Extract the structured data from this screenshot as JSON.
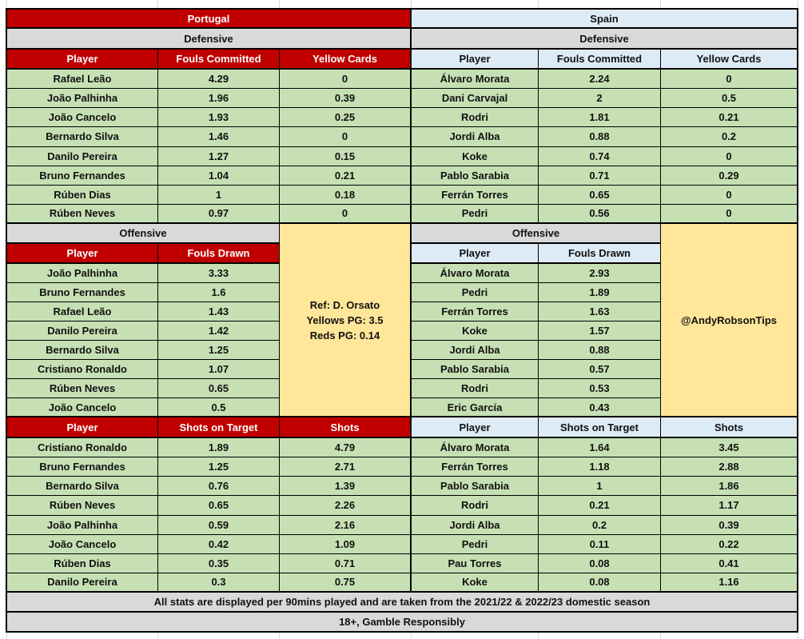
{
  "colors": {
    "portugal_header": "#c00000",
    "spain_header": "#ddebf7",
    "section_header": "#d9d9d9",
    "data_cell": "#c6e0b4",
    "info_box": "#ffe699"
  },
  "portugal": {
    "team": "Portugal",
    "defensive": {
      "label": "Defensive",
      "headers": {
        "player": "Player",
        "fouls_committed": "Fouls Committed",
        "yellow_cards": "Yellow Cards"
      },
      "rows": [
        {
          "player": "Rafael Leão",
          "fouls_committed": 4.29,
          "yellow_cards": 0
        },
        {
          "player": "João Palhinha",
          "fouls_committed": 1.96,
          "yellow_cards": 0.39
        },
        {
          "player": "João Cancelo",
          "fouls_committed": 1.93,
          "yellow_cards": 0.25
        },
        {
          "player": "Bernardo Silva",
          "fouls_committed": 1.46,
          "yellow_cards": 0
        },
        {
          "player": "Danilo Pereira",
          "fouls_committed": 1.27,
          "yellow_cards": 0.15
        },
        {
          "player": "Bruno Fernandes",
          "fouls_committed": 1.04,
          "yellow_cards": 0.21
        },
        {
          "player": "Rúben Dias",
          "fouls_committed": 1,
          "yellow_cards": 0.18
        },
        {
          "player": "Rúben Neves",
          "fouls_committed": 0.97,
          "yellow_cards": 0
        }
      ]
    },
    "offensive": {
      "label": "Offensive",
      "headers": {
        "player": "Player",
        "fouls_drawn": "Fouls Drawn"
      },
      "rows": [
        {
          "player": "João Palhinha",
          "fouls_drawn": 3.33
        },
        {
          "player": "Bruno Fernandes",
          "fouls_drawn": 1.6
        },
        {
          "player": "Rafael Leão",
          "fouls_drawn": 1.43
        },
        {
          "player": "Danilo Pereira",
          "fouls_drawn": 1.42
        },
        {
          "player": "Bernardo Silva",
          "fouls_drawn": 1.25
        },
        {
          "player": "Cristiano Ronaldo",
          "fouls_drawn": 1.07
        },
        {
          "player": "Rúben Neves",
          "fouls_drawn": 0.65
        },
        {
          "player": "João Cancelo",
          "fouls_drawn": 0.5
        }
      ]
    },
    "shots": {
      "headers": {
        "player": "Player",
        "shots_on_target": "Shots on Target",
        "shots": "Shots"
      },
      "rows": [
        {
          "player": "Cristiano Ronaldo",
          "shots_on_target": 1.89,
          "shots": 4.79
        },
        {
          "player": "Bruno Fernandes",
          "shots_on_target": 1.25,
          "shots": 2.71
        },
        {
          "player": "Bernardo Silva",
          "shots_on_target": 0.76,
          "shots": 1.39
        },
        {
          "player": "Rúben Neves",
          "shots_on_target": 0.65,
          "shots": 2.26
        },
        {
          "player": "João Palhinha",
          "shots_on_target": 0.59,
          "shots": 2.16
        },
        {
          "player": "João Cancelo",
          "shots_on_target": 0.42,
          "shots": 1.09
        },
        {
          "player": "Rúben Dias",
          "shots_on_target": 0.35,
          "shots": 0.71
        },
        {
          "player": "Danilo Pereira",
          "shots_on_target": 0.3,
          "shots": 0.75
        }
      ]
    },
    "referee_box": {
      "referee": "Ref: D. Orsato",
      "yellows_pg": "Yellows PG: 3.5",
      "reds_pg": "Reds PG: 0.14"
    }
  },
  "spain": {
    "team": "Spain",
    "defensive": {
      "label": "Defensive",
      "headers": {
        "player": "Player",
        "fouls_committed": "Fouls Committed",
        "yellow_cards": "Yellow Cards"
      },
      "rows": [
        {
          "player": "Álvaro Morata",
          "fouls_committed": 2.24,
          "yellow_cards": 0
        },
        {
          "player": "Dani Carvajal",
          "fouls_committed": 2,
          "yellow_cards": 0.5
        },
        {
          "player": "Rodri",
          "fouls_committed": 1.81,
          "yellow_cards": 0.21
        },
        {
          "player": "Jordi Alba",
          "fouls_committed": 0.88,
          "yellow_cards": 0.2
        },
        {
          "player": "Koke",
          "fouls_committed": 0.74,
          "yellow_cards": 0
        },
        {
          "player": "Pablo Sarabia",
          "fouls_committed": 0.71,
          "yellow_cards": 0.29
        },
        {
          "player": "Ferrán Torres",
          "fouls_committed": 0.65,
          "yellow_cards": 0
        },
        {
          "player": "Pedri",
          "fouls_committed": 0.56,
          "yellow_cards": 0
        }
      ]
    },
    "offensive": {
      "label": "Offensive",
      "headers": {
        "player": "Player",
        "fouls_drawn": "Fouls Drawn"
      },
      "rows": [
        {
          "player": "Álvaro Morata",
          "fouls_drawn": 2.93
        },
        {
          "player": "Pedri",
          "fouls_drawn": 1.89
        },
        {
          "player": "Ferrán Torres",
          "fouls_drawn": 1.63
        },
        {
          "player": "Koke",
          "fouls_drawn": 1.57
        },
        {
          "player": "Jordi Alba",
          "fouls_drawn": 0.88
        },
        {
          "player": "Pablo Sarabia",
          "fouls_drawn": 0.57
        },
        {
          "player": "Rodri",
          "fouls_drawn": 0.53
        },
        {
          "player": "Eric García",
          "fouls_drawn": 0.43
        }
      ]
    },
    "shots": {
      "headers": {
        "player": "Player",
        "shots_on_target": "Shots on Target",
        "shots": "Shots"
      },
      "rows": [
        {
          "player": "Álvaro Morata",
          "shots_on_target": 1.64,
          "shots": 3.45
        },
        {
          "player": "Ferrán Torres",
          "shots_on_target": 1.18,
          "shots": 2.88
        },
        {
          "player": "Pablo Sarabia",
          "shots_on_target": 1,
          "shots": 1.86
        },
        {
          "player": "Rodri",
          "shots_on_target": 0.21,
          "shots": 1.17
        },
        {
          "player": "Jordi Alba",
          "shots_on_target": 0.2,
          "shots": 0.39
        },
        {
          "player": "Pedri",
          "shots_on_target": 0.11,
          "shots": 0.22
        },
        {
          "player": "Pau Torres",
          "shots_on_target": 0.08,
          "shots": 0.41
        },
        {
          "player": "Koke",
          "shots_on_target": 0.08,
          "shots": 1.16
        }
      ]
    },
    "handle_box": {
      "handle": "@AndyRobsonTips"
    }
  },
  "footer": {
    "note": "All stats are displayed per 90mins played and are taken from the 2021/22 & 2022/23 domestic season",
    "disclaimer": "18+, Gamble Responsibly"
  }
}
